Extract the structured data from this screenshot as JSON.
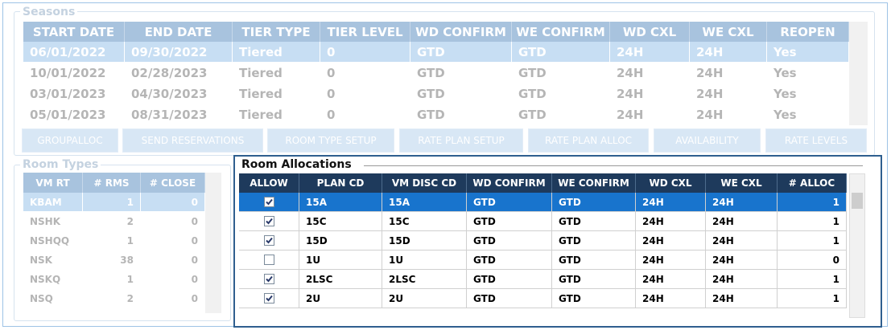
{
  "seasons": {
    "title": "Seasons",
    "columns": [
      "START DATE",
      "END DATE",
      "TIER TYPE",
      "TIER LEVEL",
      "WD CONFIRM",
      "WE CONFIRM",
      "WD CXL",
      "WE CXL",
      "REOPEN"
    ],
    "rows": [
      [
        "06/01/2022",
        "09/30/2022",
        "Tiered",
        0,
        "GTD",
        "GTD",
        "24H",
        "24H",
        "Yes"
      ],
      [
        "10/01/2022",
        "02/28/2023",
        "Tiered",
        0,
        "GTD",
        "GTD",
        "24H",
        "24H",
        "Yes"
      ],
      [
        "03/01/2023",
        "04/30/2023",
        "Tiered",
        0,
        "GTD",
        "GTD",
        "24H",
        "24H",
        "Yes"
      ],
      [
        "05/01/2023",
        "08/31/2023",
        "Tiered",
        0,
        "GTD",
        "GTD",
        "24H",
        "24H",
        "Yes"
      ]
    ]
  },
  "buttons": [
    "GROUPALLOC",
    "SEND RESERVATIONS",
    "ROOM TYPE SETUP",
    "RATE PLAN SETUP",
    "RATE PLAN ALLOC",
    "AVAILABILITY",
    "RATE LEVELS"
  ],
  "room_types": {
    "title": "Room Types",
    "columns": [
      "VM RT",
      "# RMS",
      "# CLOSE"
    ],
    "rows": [
      [
        "KBAM",
        1,
        0
      ],
      [
        "NSHK",
        2,
        0
      ],
      [
        "NSHQQ",
        1,
        0
      ],
      [
        "NSK",
        38,
        0
      ],
      [
        "NSKQ",
        1,
        0
      ],
      [
        "NSQ",
        2,
        0
      ]
    ]
  },
  "room_allocations": {
    "title": "Room Allocations",
    "columns": [
      "ALLOW",
      "PLAN CD",
      "VM DISC CD",
      "WD CONFIRM",
      "WE CONFIRM",
      "WD CXL",
      "WE CXL",
      "# ALLOC"
    ],
    "rows": [
      [
        true,
        "15A",
        "15A",
        "GTD",
        "GTD",
        "24H",
        "24H",
        1
      ],
      [
        true,
        "15C",
        "15C",
        "GTD",
        "GTD",
        "24H",
        "24H",
        1
      ],
      [
        true,
        "15D",
        "15D",
        "GTD",
        "GTD",
        "24H",
        "24H",
        1
      ],
      [
        false,
        "1U",
        "1U",
        "GTD",
        "GTD",
        "24H",
        "24H",
        0
      ],
      [
        true,
        "2LSC",
        "2LSC",
        "GTD",
        "GTD",
        "24H",
        "24H",
        1
      ],
      [
        true,
        "2U",
        "2U",
        "GTD",
        "GTD",
        "24H",
        "24H",
        1
      ]
    ]
  }
}
